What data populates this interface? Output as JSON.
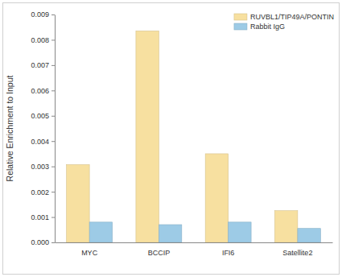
{
  "chart_data": {
    "type": "bar",
    "categories": [
      "MYC",
      "BCCIP",
      "IFI6",
      "Satellite2"
    ],
    "series": [
      {
        "name": "RUVBL1/TIP49A/PONTIN",
        "color": "#f7e0a0",
        "values": [
          0.00307,
          0.00835,
          0.0035,
          0.00125
        ]
      },
      {
        "name": "Rabbit IgG",
        "color": "#9dcbe6",
        "values": [
          0.0008,
          0.0007,
          0.0008,
          0.00055
        ]
      }
    ],
    "y_label": "Relative Enrichment to Input",
    "ylim": [
      0,
      0.009
    ],
    "yticks": [
      {
        "value": 0,
        "label": "0.000"
      },
      {
        "value": 0.001,
        "label": "0.001"
      },
      {
        "value": 0.002,
        "label": "0.002"
      },
      {
        "value": 0.003,
        "label": "0.003"
      },
      {
        "value": 0.004,
        "label": "0.004"
      },
      {
        "value": 0.005,
        "label": "0.005"
      },
      {
        "value": 0.006,
        "label": "0.006"
      },
      {
        "value": 0.007,
        "label": "0.007"
      },
      {
        "value": 0.008,
        "label": "0.008"
      },
      {
        "value": 0.009,
        "label": "0.009"
      }
    ],
    "legend": "top-right",
    "grid": false
  }
}
